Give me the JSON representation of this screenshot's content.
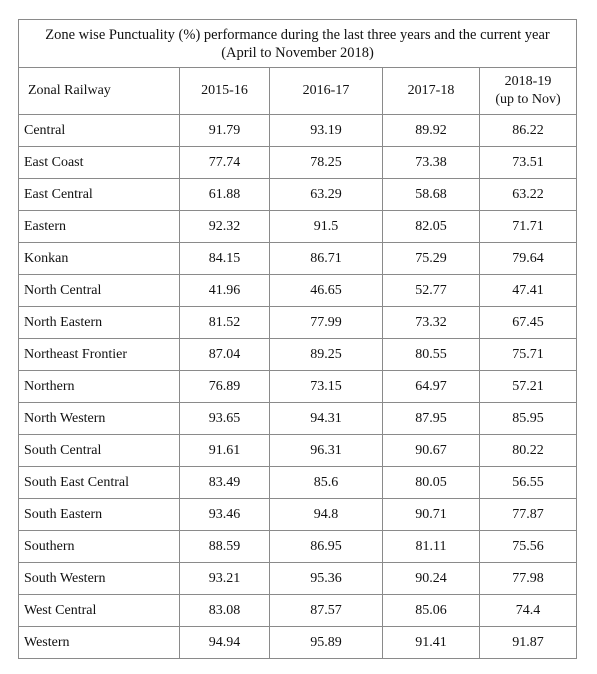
{
  "table": {
    "title_line1": "Zone wise Punctuality (%) performance during the last three years and the current year",
    "title_line2": "(April to November 2018)",
    "columns": {
      "zone": "Zonal Railway",
      "y1": "2015-16",
      "y2": "2016-17",
      "y3": "2017-18",
      "y4_line1": "2018-19",
      "y4_line2": "(up to Nov)"
    },
    "rows": [
      {
        "zone": "Central",
        "y1": "91.79",
        "y2": "93.19",
        "y3": "89.92",
        "y4": "86.22"
      },
      {
        "zone": "East Coast",
        "y1": "77.74",
        "y2": "78.25",
        "y3": "73.38",
        "y4": "73.51"
      },
      {
        "zone": "East Central",
        "y1": "61.88",
        "y2": "63.29",
        "y3": "58.68",
        "y4": "63.22"
      },
      {
        "zone": "Eastern",
        "y1": "92.32",
        "y2": "91.5",
        "y3": "82.05",
        "y4": "71.71"
      },
      {
        "zone": "Konkan",
        "y1": "84.15",
        "y2": "86.71",
        "y3": "75.29",
        "y4": "79.64"
      },
      {
        "zone": "North Central",
        "y1": "41.96",
        "y2": "46.65",
        "y3": "52.77",
        "y4": "47.41"
      },
      {
        "zone": "North Eastern",
        "y1": "81.52",
        "y2": "77.99",
        "y3": "73.32",
        "y4": "67.45"
      },
      {
        "zone": "Northeast Frontier",
        "y1": "87.04",
        "y2": "89.25",
        "y3": "80.55",
        "y4": "75.71"
      },
      {
        "zone": "Northern",
        "y1": "76.89",
        "y2": "73.15",
        "y3": "64.97",
        "y4": "57.21"
      },
      {
        "zone": "North Western",
        "y1": "93.65",
        "y2": "94.31",
        "y3": "87.95",
        "y4": "85.95"
      },
      {
        "zone": "South Central",
        "y1": "91.61",
        "y2": "96.31",
        "y3": "90.67",
        "y4": "80.22"
      },
      {
        "zone": "South East Central",
        "y1": "83.49",
        "y2": "85.6",
        "y3": "80.05",
        "y4": "56.55"
      },
      {
        "zone": "South Eastern",
        "y1": "93.46",
        "y2": "94.8",
        "y3": "90.71",
        "y4": "77.87"
      },
      {
        "zone": "Southern",
        "y1": "88.59",
        "y2": "86.95",
        "y3": "81.11",
        "y4": "75.56"
      },
      {
        "zone": "South Western",
        "y1": "93.21",
        "y2": "95.36",
        "y3": "90.24",
        "y4": "77.98"
      },
      {
        "zone": "West Central",
        "y1": "83.08",
        "y2": "87.57",
        "y3": "85.06",
        "y4": "74.4"
      },
      {
        "zone": "Western",
        "y1": "94.94",
        "y2": "95.89",
        "y3": "91.41",
        "y4": "91.87"
      }
    ]
  }
}
